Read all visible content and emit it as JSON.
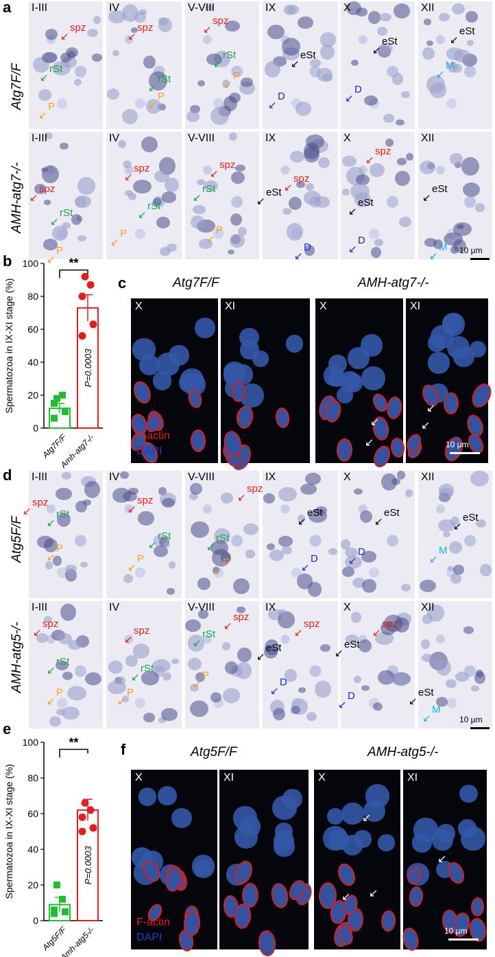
{
  "panels": {
    "a": "a",
    "b": "b",
    "c": "c",
    "d": "d",
    "e": "e",
    "f": "f"
  },
  "a": {
    "row1_label": "Atg7F/F",
    "row2_label": "AMH-atg7-/-",
    "stages": [
      "I-III",
      "IV",
      "V-VIII",
      "IX",
      "X",
      "XII"
    ],
    "labels": {
      "spz": "spz",
      "rSt": "rSt",
      "P": "P",
      "eSt": "eSt",
      "D": "D",
      "M": "M"
    },
    "scale": "10 μm"
  },
  "c": {
    "head1": "Atg7F/F",
    "head2": "AMH-atg7-/-",
    "stages": [
      "X",
      "XI",
      "X",
      "XI"
    ],
    "stain1": "F-actin",
    "stain2": "DAPI",
    "scale": "10 μm"
  },
  "d": {
    "row1_label": "Atg5F/F",
    "row2_label": "AMH-atg5-/-",
    "stages": [
      "I-III",
      "IV",
      "V-VIII",
      "IX",
      "X",
      "XII"
    ],
    "labels": {
      "spz": "spz",
      "rSt": "rSt",
      "P": "P",
      "eSt": "eSt",
      "D": "D",
      "M": "M"
    },
    "scale": "10 μm"
  },
  "f": {
    "head1": "Atg5F/F",
    "head2": "AMH-atg5-/-",
    "stages": [
      "X",
      "XI",
      "X",
      "XI"
    ],
    "stain1": "F-actin",
    "stain2": "DAPI",
    "scale": "10 μm"
  },
  "chart_data": [
    {
      "panel": "b",
      "type": "bar",
      "ylabel": "Spermatozoa in IX-XI stage (%)",
      "categories": [
        "Atg7F/F",
        "Amh-atg7-/-"
      ],
      "values": [
        12,
        73
      ],
      "errors": [
        3,
        8
      ],
      "points": [
        [
          6,
          10,
          15,
          20,
          18
        ],
        [
          56,
          63,
          80,
          87,
          92
        ]
      ],
      "colors": [
        "#22bb33",
        "#e02020"
      ],
      "ylim": [
        0,
        100
      ],
      "yticks": [
        0,
        20,
        40,
        60,
        80,
        100
      ],
      "significance": "**",
      "pvalue": "P=0.0003"
    },
    {
      "panel": "e",
      "type": "bar",
      "ylabel": "Spermatozoa in IX-XI stage (%)",
      "categories": [
        "Atg5F/F",
        "Amh-atg5-/-"
      ],
      "values": [
        9,
        62
      ],
      "errors": [
        4,
        6
      ],
      "points": [
        [
          4,
          5,
          6,
          12,
          20
        ],
        [
          50,
          52,
          58,
          62,
          66
        ]
      ],
      "colors": [
        "#22bb33",
        "#e02020"
      ],
      "ylim": [
        0,
        100
      ],
      "yticks": [
        0,
        20,
        40,
        60,
        80,
        100
      ],
      "significance": "**",
      "pvalue": "P=0.0003"
    }
  ]
}
